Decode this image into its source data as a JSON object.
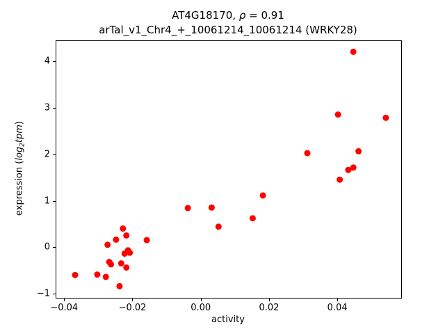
{
  "title": {
    "line1_prefix": "AT4G18170, ",
    "rho": "ρ",
    "line1_suffix": " = 0.91",
    "line2": "arTal_v1_Chr4_+_10061214_10061214 (WRKY28)"
  },
  "xlabel": "activity",
  "ylabel_parts": {
    "prefix": "expression (",
    "log": "log",
    "sub": "2",
    "var": "tpm",
    "suffix": ")"
  },
  "chart_data": {
    "type": "scatter",
    "title": "AT4G18170, ρ = 0.91\narTal_v1_Chr4_+_10061214_10061214 (WRKY28)",
    "xlabel": "activity",
    "ylabel": "expression (log2 tpm)",
    "marker_color": "#ff0000",
    "marker_radius": 4.5,
    "xlim": [
      -0.0425,
      0.0585
    ],
    "ylim": [
      -1.07,
      4.45
    ],
    "grid": false,
    "legend": null,
    "xticks": [
      {
        "v": -0.04,
        "label": "−0.04"
      },
      {
        "v": -0.02,
        "label": "−0.02"
      },
      {
        "v": 0.0,
        "label": "0.00"
      },
      {
        "v": 0.02,
        "label": "0.02"
      },
      {
        "v": 0.04,
        "label": "0.04"
      }
    ],
    "yticks": [
      {
        "v": -1,
        "label": "−1"
      },
      {
        "v": 0,
        "label": "0"
      },
      {
        "v": 1,
        "label": "1"
      },
      {
        "v": 2,
        "label": "2"
      },
      {
        "v": 3,
        "label": "3"
      },
      {
        "v": 4,
        "label": "4"
      }
    ],
    "points": [
      [
        -0.037,
        -0.58
      ],
      [
        -0.0305,
        -0.57
      ],
      [
        -0.028,
        -0.62
      ],
      [
        -0.0275,
        0.07
      ],
      [
        -0.027,
        -0.3
      ],
      [
        -0.0265,
        -0.35
      ],
      [
        -0.025,
        0.18
      ],
      [
        -0.024,
        -0.82
      ],
      [
        -0.0235,
        -0.33
      ],
      [
        -0.023,
        0.42
      ],
      [
        -0.0225,
        -0.12
      ],
      [
        -0.022,
        0.27
      ],
      [
        -0.022,
        -0.42
      ],
      [
        -0.0215,
        -0.05
      ],
      [
        -0.021,
        -0.1
      ],
      [
        -0.016,
        0.17
      ],
      [
        -0.004,
        0.86
      ],
      [
        0.003,
        0.87
      ],
      [
        0.005,
        0.46
      ],
      [
        0.015,
        0.64
      ],
      [
        0.018,
        1.13
      ],
      [
        0.031,
        2.04
      ],
      [
        0.04,
        2.87
      ],
      [
        0.0405,
        1.47
      ],
      [
        0.043,
        1.68
      ],
      [
        0.0445,
        1.73
      ],
      [
        0.0445,
        4.22
      ],
      [
        0.046,
        2.08
      ],
      [
        0.054,
        2.8
      ]
    ]
  }
}
